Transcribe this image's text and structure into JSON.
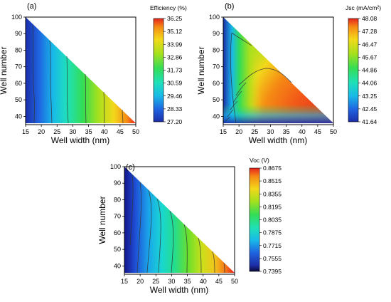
{
  "chart_data": [
    {
      "type": "heatmap",
      "panel_label": "(a)",
      "xlabel": "Well width (nm)",
      "ylabel": "Well number",
      "xlim": [
        15,
        50
      ],
      "ylim": [
        35,
        100
      ],
      "xticks": [
        "15",
        "20",
        "25",
        "30",
        "35",
        "40",
        "45",
        "50"
      ],
      "yticks": [
        "40",
        "50",
        "60",
        "70",
        "80",
        "90",
        "100"
      ],
      "colorbar_title": "Efficiency (%)",
      "colorbar_ticks": [
        "36.25",
        "35.12",
        "33.99",
        "32.86",
        "31.73",
        "30.59",
        "29.46",
        "28.33",
        "27.20"
      ],
      "colorbar_range": [
        27.2,
        36.25
      ],
      "region": "lower-left triangle from (15,100) to (50,36)",
      "contour_well_width": [
        16.8,
        22.5,
        27.8,
        33.5,
        39.5,
        46.0
      ]
    },
    {
      "type": "heatmap",
      "panel_label": "(b)",
      "xlabel": "Well width (nm)",
      "ylabel": "Well number",
      "xlim": [
        15,
        50
      ],
      "ylim": [
        35,
        100
      ],
      "xticks": [
        "15",
        "20",
        "25",
        "30",
        "35",
        "40",
        "45",
        "50"
      ],
      "yticks": [
        "40",
        "50",
        "60",
        "70",
        "80",
        "90",
        "100"
      ],
      "colorbar_title": "Jsc (mA/cm²)",
      "colorbar_ticks": [
        "48.08",
        "47.28",
        "46.47",
        "45.67",
        "44.86",
        "44.06",
        "43.25",
        "42.45",
        "41.64"
      ],
      "colorbar_range": [
        41.64,
        48.08
      ],
      "region": "lower-left triangle from (15,100) to (50,36)"
    },
    {
      "type": "heatmap",
      "panel_label": "(c)",
      "xlabel": "Well width (nm)",
      "ylabel": "Well number",
      "xlim": [
        15,
        50
      ],
      "ylim": [
        35,
        100
      ],
      "xticks": [
        "15",
        "20",
        "25",
        "30",
        "35",
        "40",
        "45",
        "50"
      ],
      "yticks": [
        "40",
        "50",
        "60",
        "70",
        "80",
        "90",
        "100"
      ],
      "colorbar_title": "Voc (V)",
      "colorbar_ticks": [
        "0.8675",
        "0.8515",
        "0.8355",
        "0.8195",
        "0.8035",
        "0.7875",
        "0.7715",
        "0.7555",
        "0.7395"
      ],
      "colorbar_range": [
        0.7395,
        0.8675
      ],
      "region": "lower-left triangle from (15,100) to (50,36)"
    }
  ]
}
